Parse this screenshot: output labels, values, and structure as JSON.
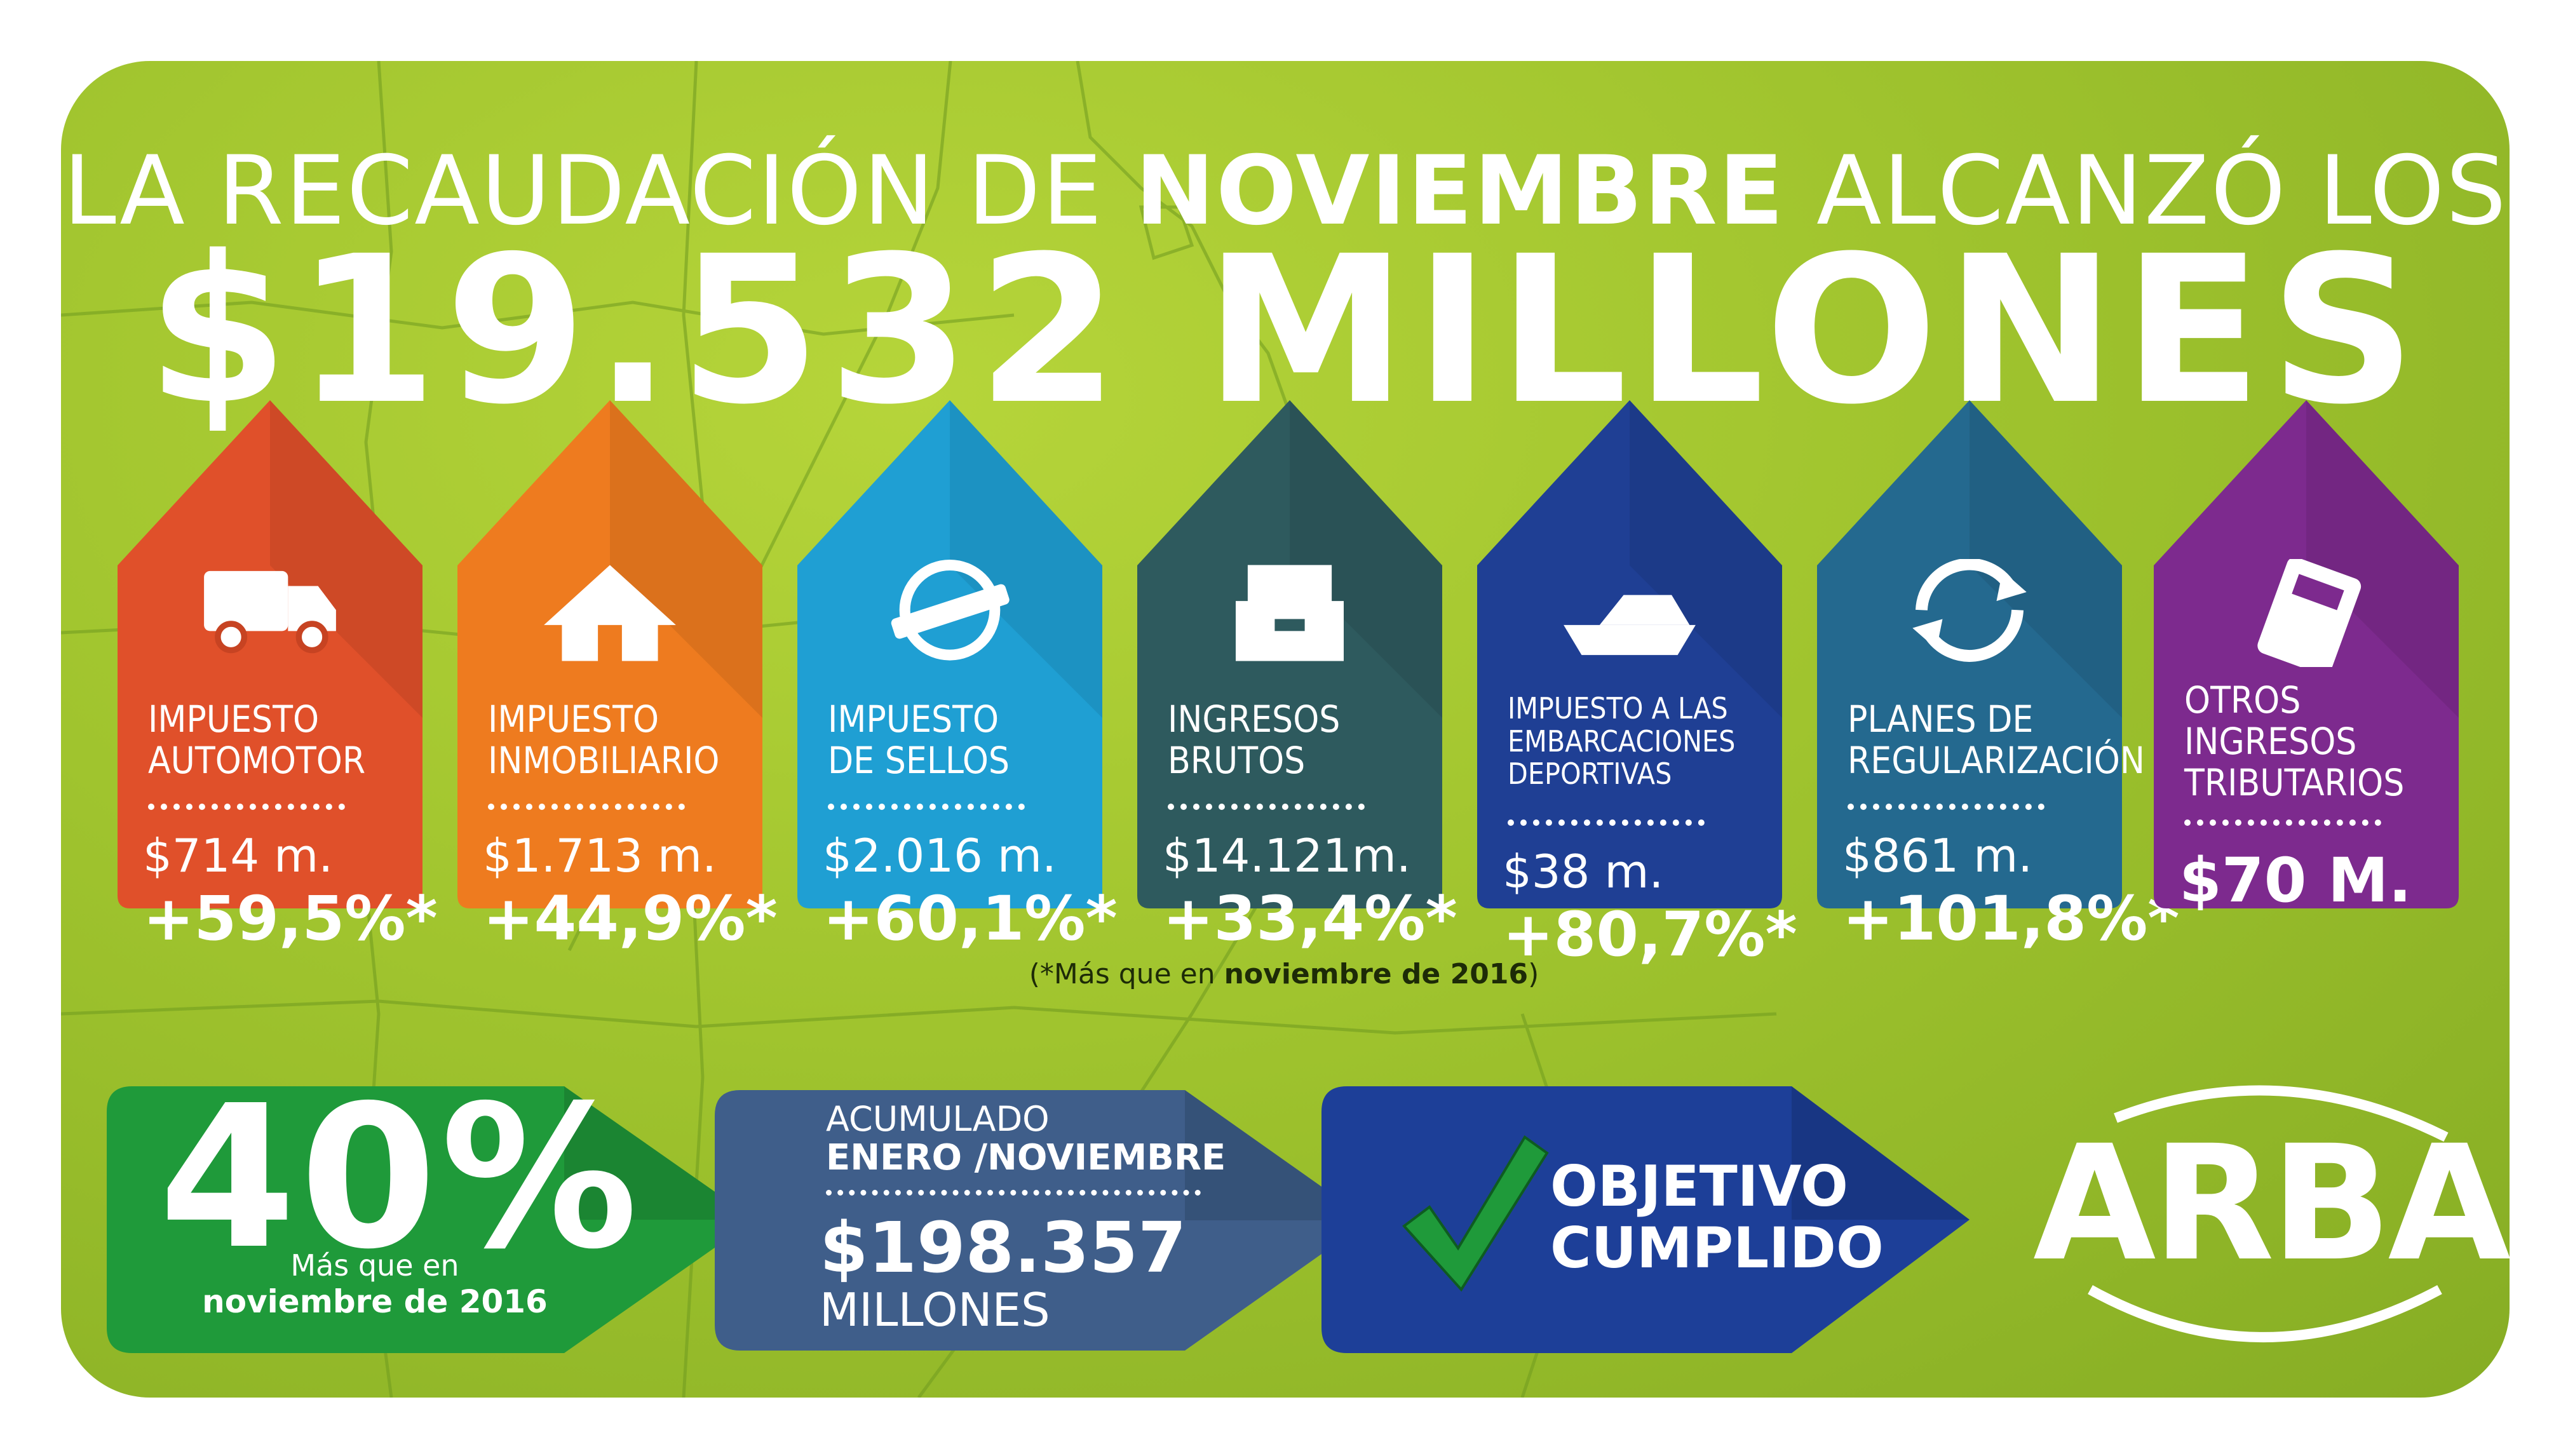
{
  "title": {
    "line1_pre": "LA RECAUDACIÓN DE ",
    "line1_bold": "NOVIEMBRE",
    "line1_post": " ALCANZÓ LOS",
    "line2": "$19.532 MILLONES"
  },
  "cards": [
    {
      "label1": "IMPUESTO",
      "label2": "AUTOMOTOR",
      "label3": "",
      "amount": "$714 m.",
      "change": "+59,5%*",
      "color": "#e0502a",
      "icon": "truck-icon"
    },
    {
      "label1": "IMPUESTO",
      "label2": "INMOBILIARIO",
      "label3": "",
      "amount": "$1.713 m.",
      "change": "+44,9%*",
      "color": "#ee7b1f",
      "icon": "house-icon"
    },
    {
      "label1": "IMPUESTO",
      "label2": "DE SELLOS",
      "label3": "",
      "amount": "$2.016 m.",
      "change": "+60,1%*",
      "color": "#1f9fd3",
      "icon": "stamp-icon"
    },
    {
      "label1": "INGRESOS",
      "label2": "BRUTOS",
      "label3": "",
      "amount": "$14.121m.",
      "change": "+33,4%*",
      "color": "#2e5a5e",
      "icon": "file-box-icon"
    },
    {
      "label1": "IMPUESTO A LAS",
      "label2": "EMBARCACIONES",
      "label3": "DEPORTIVAS",
      "amount": "$38 m.",
      "change": "+80,7%*",
      "color": "#1f3f94",
      "icon": "boat-icon"
    },
    {
      "label1": "PLANES DE",
      "label2": "REGULARIZACIÓN",
      "label3": "",
      "amount": "$861 m.",
      "change": "+101,8%*",
      "color": "#24698f",
      "icon": "refresh-icon"
    },
    {
      "label1": "OTROS",
      "label2": "INGRESOS",
      "label3": "TRIBUTARIOS",
      "amount": "",
      "change": "$70 M.",
      "color": "#7d2a8e",
      "icon": "calculator-icon"
    }
  ],
  "footnote": {
    "pre": "(*Más que en ",
    "bold": "noviembre de 2016",
    "post": ")"
  },
  "growth": {
    "value": "40%",
    "sub1": "Más que en",
    "sub2": "noviembre de 2016",
    "color": "#1f9a3a"
  },
  "accumulated": {
    "line1": "ACUMULADO",
    "line2": "ENERO /NOVIEMBRE",
    "amount": "$198.357",
    "unit": "MILLONES",
    "color": "#3f5e8a"
  },
  "objective": {
    "line1": "OBJETIVO",
    "line2": "CUMPLIDO",
    "color": "#1d3f98",
    "check_color": "#1f9a3a"
  },
  "logo": {
    "text": "ARBA"
  }
}
